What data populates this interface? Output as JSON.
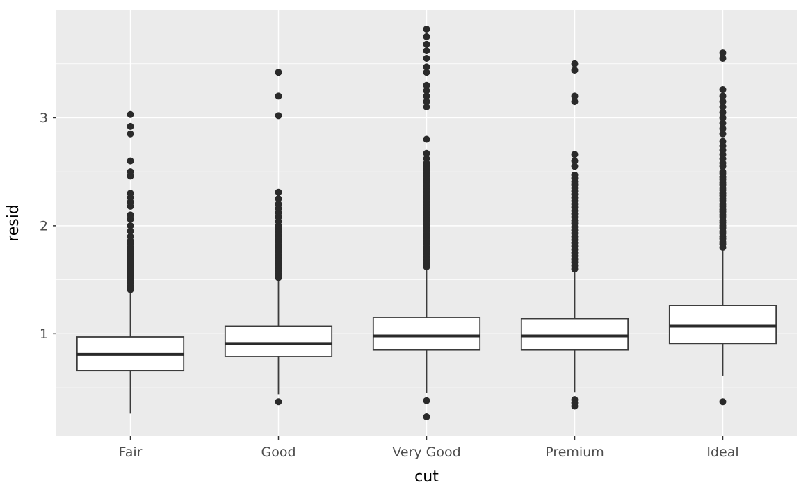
{
  "figure": {
    "background": "#FFFFFF"
  },
  "panel": {
    "background": "#EBEBEB",
    "grid_major_color": "#FFFFFF",
    "grid_minor_color": "#FFFFFF"
  },
  "style": {
    "box_fill": "#FFFFFF",
    "box_stroke": "#3B3B3B",
    "median_color": "#2A2A2A",
    "whisker_color": "#3B3B3B",
    "outlier_color": "#2A2A2A",
    "tick_mark_color": "#333333",
    "tick_label_color": "#4D4D4D",
    "axis_title_color": "#000000"
  },
  "chart_data": {
    "type": "boxplot",
    "title": "",
    "xlabel": "cut",
    "ylabel": "resid",
    "categories": [
      "Fair",
      "Good",
      "Very Good",
      "Premium",
      "Ideal"
    ],
    "y_ticks": [
      1,
      2,
      3
    ],
    "y_minor_ticks": [
      0.5,
      1.5,
      2.5,
      3.5
    ],
    "ylim": [
      0.05,
      4.0
    ],
    "grid": true,
    "legend": "none",
    "series": [
      {
        "category": "Fair",
        "whisker_low": 0.26,
        "q1": 0.66,
        "median": 0.81,
        "q3": 0.97,
        "whisker_high": 1.39,
        "outliers": [
          1.41,
          1.44,
          1.47,
          1.5,
          1.52,
          1.54,
          1.56,
          1.58,
          1.6,
          1.62,
          1.64,
          1.66,
          1.68,
          1.7,
          1.72,
          1.74,
          1.77,
          1.8,
          1.83,
          1.86,
          1.9,
          1.95,
          2.0,
          2.06,
          2.1,
          2.18,
          2.22,
          2.26,
          2.3,
          2.46,
          2.5,
          2.6,
          2.85,
          2.92,
          3.03
        ]
      },
      {
        "category": "Good",
        "whisker_low": 0.44,
        "q1": 0.79,
        "median": 0.91,
        "q3": 1.07,
        "whisker_high": 1.49,
        "outliers": [
          0.37,
          1.52,
          1.55,
          1.58,
          1.61,
          1.64,
          1.67,
          1.7,
          1.73,
          1.76,
          1.79,
          1.82,
          1.85,
          1.88,
          1.91,
          1.94,
          1.97,
          2.0,
          2.04,
          2.08,
          2.12,
          2.16,
          2.2,
          2.25,
          2.31,
          3.02,
          3.2,
          3.42
        ]
      },
      {
        "category": "Very Good",
        "whisker_low": 0.45,
        "q1": 0.85,
        "median": 0.98,
        "q3": 1.15,
        "whisker_high": 1.6,
        "outliers": [
          0.23,
          0.38,
          1.62,
          1.65,
          1.68,
          1.71,
          1.74,
          1.77,
          1.8,
          1.83,
          1.86,
          1.89,
          1.92,
          1.95,
          1.98,
          2.01,
          2.04,
          2.07,
          2.1,
          2.13,
          2.16,
          2.19,
          2.22,
          2.25,
          2.28,
          2.31,
          2.34,
          2.37,
          2.4,
          2.43,
          2.46,
          2.49,
          2.52,
          2.55,
          2.58,
          2.62,
          2.67,
          2.8,
          3.1,
          3.15,
          3.2,
          3.25,
          3.3,
          3.42,
          3.47,
          3.55,
          3.62,
          3.68,
          3.75,
          3.82
        ]
      },
      {
        "category": "Premium",
        "whisker_low": 0.46,
        "q1": 0.85,
        "median": 0.98,
        "q3": 1.14,
        "whisker_high": 1.58,
        "outliers": [
          0.33,
          0.36,
          0.39,
          1.6,
          1.63,
          1.66,
          1.69,
          1.72,
          1.75,
          1.78,
          1.81,
          1.84,
          1.87,
          1.9,
          1.93,
          1.96,
          1.99,
          2.02,
          2.05,
          2.08,
          2.11,
          2.14,
          2.17,
          2.2,
          2.23,
          2.26,
          2.29,
          2.32,
          2.35,
          2.38,
          2.41,
          2.44,
          2.47,
          2.55,
          2.6,
          2.66,
          3.15,
          3.2,
          3.44,
          3.5
        ]
      },
      {
        "category": "Ideal",
        "whisker_low": 0.61,
        "q1": 0.91,
        "median": 1.07,
        "q3": 1.26,
        "whisker_high": 1.78,
        "outliers": [
          0.37,
          1.8,
          1.83,
          1.85,
          1.88,
          1.9,
          1.93,
          1.95,
          1.98,
          2.0,
          2.03,
          2.05,
          2.08,
          2.1,
          2.13,
          2.15,
          2.18,
          2.2,
          2.23,
          2.25,
          2.28,
          2.3,
          2.33,
          2.35,
          2.38,
          2.4,
          2.43,
          2.45,
          2.48,
          2.5,
          2.55,
          2.58,
          2.62,
          2.66,
          2.7,
          2.74,
          2.78,
          2.85,
          2.9,
          2.95,
          3.0,
          3.05,
          3.1,
          3.15,
          3.2,
          3.26,
          3.55,
          3.6
        ]
      }
    ]
  }
}
